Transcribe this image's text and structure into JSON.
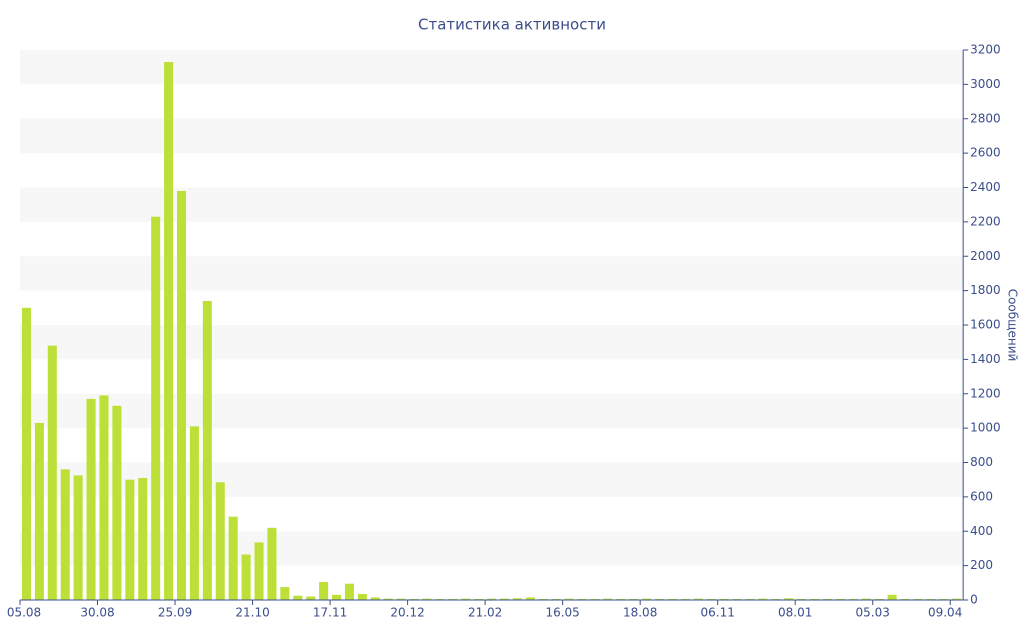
{
  "chart_data": {
    "type": "bar",
    "title": "Статистика активности",
    "y_label": "Сообщений",
    "categories": [
      "05.08",
      null,
      null,
      null,
      null,
      null,
      "30.08",
      null,
      null,
      null,
      null,
      null,
      "25.09",
      null,
      null,
      null,
      null,
      null,
      "21.10",
      null,
      null,
      null,
      null,
      null,
      "17.11",
      null,
      null,
      null,
      null,
      null,
      "20.12",
      null,
      null,
      null,
      null,
      null,
      "21.02",
      null,
      null,
      null,
      null,
      null,
      "16.05",
      null,
      null,
      null,
      null,
      null,
      "18.08",
      null,
      null,
      null,
      null,
      null,
      "06.11",
      null,
      null,
      null,
      null,
      null,
      "08.01",
      null,
      null,
      null,
      null,
      null,
      "05.03",
      null,
      null,
      null,
      null,
      null,
      "09.04"
    ],
    "values": [
      1700,
      1030,
      1480,
      760,
      725,
      1170,
      1190,
      1130,
      700,
      710,
      2230,
      3130,
      2380,
      1010,
      1740,
      685,
      485,
      265,
      335,
      420,
      75,
      25,
      20,
      105,
      30,
      95,
      35,
      15,
      8,
      8,
      6,
      8,
      6,
      6,
      8,
      6,
      8,
      8,
      10,
      15,
      6,
      6,
      8,
      6,
      6,
      8,
      6,
      6,
      8,
      6,
      6,
      6,
      8,
      6,
      6,
      6,
      6,
      8,
      6,
      10,
      6,
      6,
      6,
      6,
      6,
      8,
      6,
      30,
      6,
      6,
      6,
      6,
      8
    ],
    "color": "#bde038",
    "ylim": [
      0,
      3200
    ],
    "yticks": [
      0,
      200,
      400,
      600,
      800,
      1000,
      1200,
      1400,
      1600,
      1800,
      2000,
      2200,
      2400,
      2600,
      2800,
      3000,
      3200
    ],
    "y_axis_side": "right",
    "grid": true
  }
}
